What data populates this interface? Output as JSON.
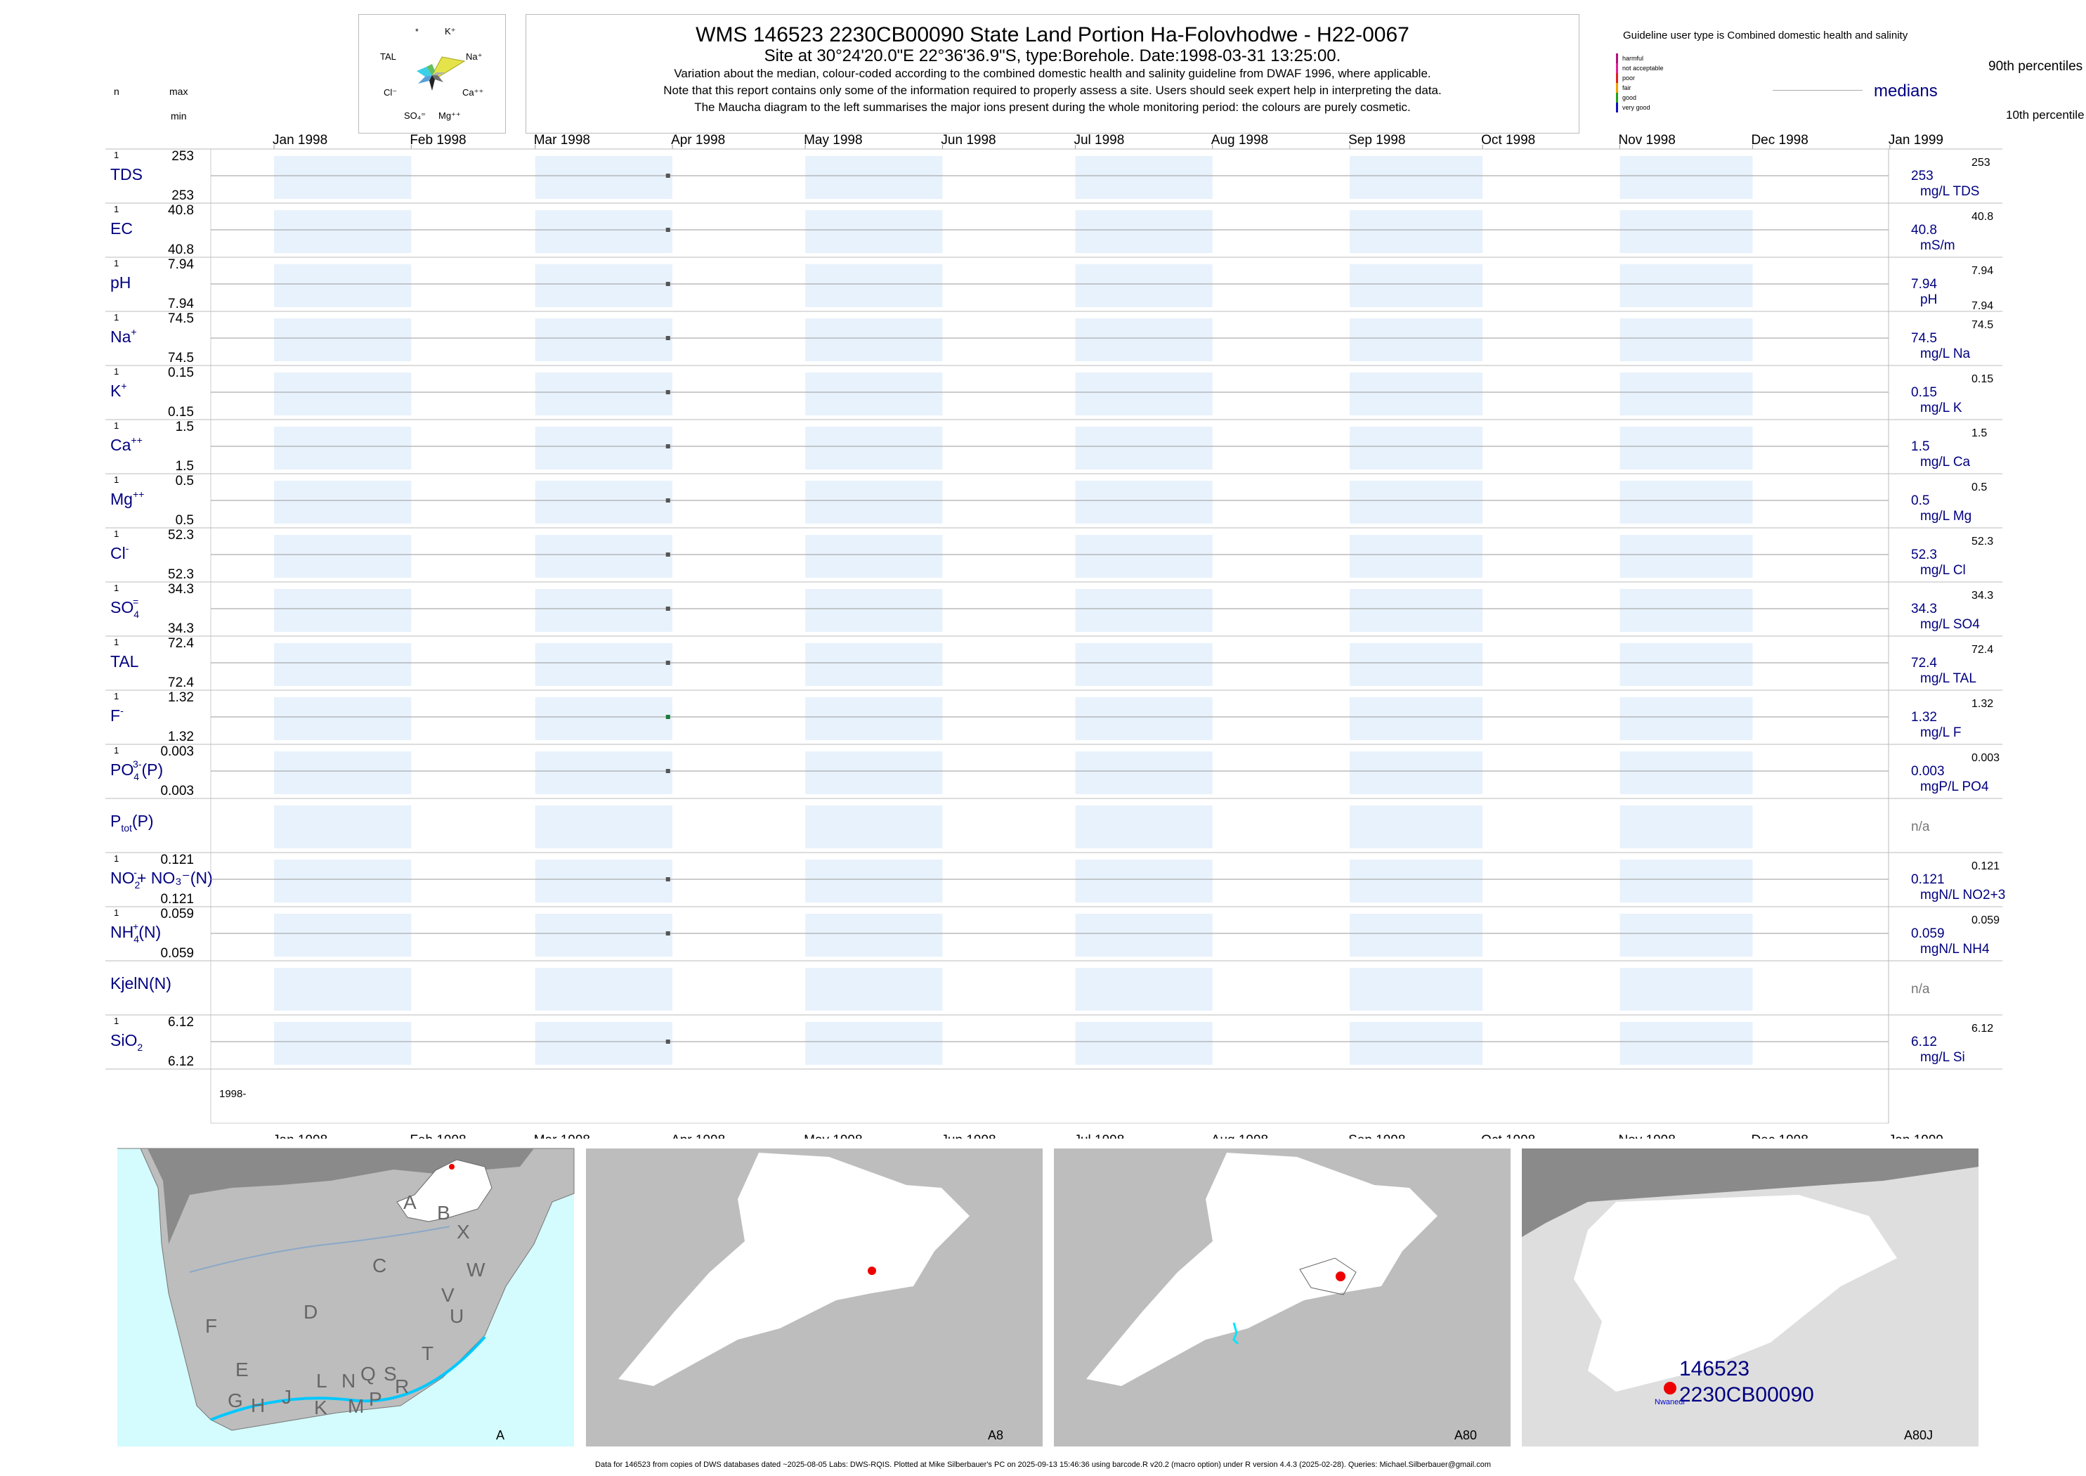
{
  "header": {
    "title": "WMS 146523 2230CB00090 State Land Portion Ha-Folovhodwe - H22-0067",
    "site": "Site at 30°24'20.0\"E 22°36'36.9\"S, type:Borehole. Date:1998-03-31 13:25:00.",
    "notes": [
      "Variation about the median,  colour-coded according to the combined domestic health and salinity guideline from DWAF 1996, where applicable.",
      "Note that this report contains only some of the information required to properly assess a site. Users should seek expert help in interpreting the data.",
      "The Maucha diagram to the left summarises the major ions present during the whole monitoring period: the colours are purely cosmetic."
    ]
  },
  "maucha": {
    "labels": {
      "star": "*",
      "k": "K⁺",
      "tal": "TAL",
      "na": "Na⁺",
      "cl": "Cl⁻",
      "ca": "Ca⁺⁺",
      "so4": "SO₄⁼",
      "mg": "Mg⁺⁺"
    }
  },
  "column_labels": {
    "n": "n",
    "max": "max",
    "min": "min"
  },
  "legend": {
    "guideline": "Guideline user type is Combined domestic health and salinity",
    "classes": [
      {
        "label": "harmful",
        "color": "#b0127a"
      },
      {
        "label": "not acceptable",
        "color": "#e0209a"
      },
      {
        "label": "poor",
        "color": "#e02020"
      },
      {
        "label": "fair",
        "color": "#f0a000"
      },
      {
        "label": "good",
        "color": "#20a020"
      },
      {
        "label": "very good",
        "color": "#1010c0"
      }
    ],
    "p90": "90th percentiles",
    "median": "medians",
    "p10": "10th percentile"
  },
  "chart_data": {
    "type": "scatter",
    "x_axis": {
      "range": [
        "1998-01-01",
        "1999-01-15"
      ],
      "ticks": [
        "Jan 1998",
        "Feb 1998",
        "Mar 1998",
        "Apr 1998",
        "May 1998",
        "Jun 1998",
        "Jul 1998",
        "Aug 1998",
        "Sep 1998",
        "Oct 1998",
        "Nov 1998",
        "Dec 1998",
        "Jan 1999"
      ]
    },
    "sample_date": "1998-03-31",
    "year_label": "1998-",
    "series": [
      {
        "name": "TDS",
        "n": "1",
        "max": "253",
        "min": "253",
        "value": 253,
        "median": "253",
        "unit": "mg/L TDS",
        "p90": "253",
        "p10": ""
      },
      {
        "name": "EC",
        "n": "1",
        "max": "40.8",
        "min": "40.8",
        "value": 40.8,
        "median": "40.8",
        "unit": "mS/m",
        "p90": "40.8",
        "p10": ""
      },
      {
        "name": "pH",
        "n": "1",
        "max": "7.94",
        "min": "7.94",
        "value": 7.94,
        "median": "7.94",
        "unit": "pH",
        "p90": "7.94",
        "p10": "7.94"
      },
      {
        "name": "Na",
        "n": "1",
        "max": "74.5",
        "min": "74.5",
        "value": 74.5,
        "median": "74.5",
        "unit": "mg/L Na",
        "p90": "74.5",
        "p10": ""
      },
      {
        "name": "K",
        "n": "1",
        "max": "0.15",
        "min": "0.15",
        "value": 0.15,
        "median": "0.15",
        "unit": "mg/L K",
        "p90": "0.15",
        "p10": ""
      },
      {
        "name": "Ca",
        "n": "1",
        "max": "1.5",
        "min": "1.5",
        "value": 1.5,
        "median": "1.5",
        "unit": "mg/L Ca",
        "p90": "1.5",
        "p10": ""
      },
      {
        "name": "Mg",
        "n": "1",
        "max": "0.5",
        "min": "0.5",
        "value": 0.5,
        "median": "0.5",
        "unit": "mg/L Mg",
        "p90": "0.5",
        "p10": ""
      },
      {
        "name": "Cl",
        "n": "1",
        "max": "52.3",
        "min": "52.3",
        "value": 52.3,
        "median": "52.3",
        "unit": "mg/L Cl",
        "p90": "52.3",
        "p10": ""
      },
      {
        "name": "SO4",
        "n": "1",
        "max": "34.3",
        "min": "34.3",
        "value": 34.3,
        "median": "34.3",
        "unit": "mg/L SO4",
        "p90": "34.3",
        "p10": ""
      },
      {
        "name": "TAL",
        "n": "1",
        "max": "72.4",
        "min": "72.4",
        "value": 72.4,
        "median": "72.4",
        "unit": "mg/L TAL",
        "p90": "72.4",
        "p10": ""
      },
      {
        "name": "F",
        "n": "1",
        "max": "1.32",
        "min": "1.32",
        "value": 1.32,
        "median": "1.32",
        "unit": "mg/L F",
        "p90": "1.32",
        "p10": "",
        "mark_color": "#1a7a3a"
      },
      {
        "name": "PO4(P)",
        "n": "1",
        "max": "0.003",
        "min": "0.003",
        "value": 0.003,
        "median": "0.003",
        "unit": "mgP/L PO4",
        "p90": "0.003",
        "p10": ""
      },
      {
        "name": "Ptot(P)",
        "n": "",
        "max": "",
        "min": "",
        "value": null,
        "median": "n/a",
        "unit": "",
        "p90": "",
        "p10": ""
      },
      {
        "name": "NO2+NO3(N)",
        "n": "1",
        "max": "0.121",
        "min": "0.121",
        "value": 0.121,
        "median": "0.121",
        "unit": "mgN/L NO2+3",
        "p90": "0.121",
        "p10": ""
      },
      {
        "name": "NH4(N)",
        "n": "1",
        "max": "0.059",
        "min": "0.059",
        "value": 0.059,
        "median": "0.059",
        "unit": "mgN/L NH4",
        "p90": "0.059",
        "p10": ""
      },
      {
        "name": "KjelN(N)",
        "n": "",
        "max": "",
        "min": "",
        "value": null,
        "median": "n/a",
        "unit": "",
        "p90": "",
        "p10": ""
      },
      {
        "name": "SiO2",
        "n": "1",
        "max": "6.12",
        "min": "6.12",
        "value": 6.12,
        "median": "6.12",
        "unit": "mg/L Si",
        "p90": "6.12",
        "p10": ""
      }
    ]
  },
  "row_labels": [
    {
      "main": "TDS",
      "sup": "",
      "sub": "",
      "tail": ""
    },
    {
      "main": "EC",
      "sup": "",
      "sub": "",
      "tail": ""
    },
    {
      "main": "pH",
      "sup": "",
      "sub": "",
      "tail": ""
    },
    {
      "main": "Na",
      "sup": "+",
      "sub": "",
      "tail": ""
    },
    {
      "main": "K",
      "sup": "+",
      "sub": "",
      "tail": ""
    },
    {
      "main": "Ca",
      "sup": "++",
      "sub": "",
      "tail": ""
    },
    {
      "main": "Mg",
      "sup": "++",
      "sub": "",
      "tail": ""
    },
    {
      "main": "Cl",
      "sup": "-",
      "sub": "",
      "tail": ""
    },
    {
      "main": "SO",
      "sup": "=",
      "sub": "4",
      "tail": ""
    },
    {
      "main": "TAL",
      "sup": "",
      "sub": "",
      "tail": ""
    },
    {
      "main": "F",
      "sup": "-",
      "sub": "",
      "tail": ""
    },
    {
      "main": "PO",
      "sup": "3-",
      "sub": "4",
      "tail": "(P)"
    },
    {
      "main": "P",
      "sup": "",
      "sub": "tot",
      "tail": "(P)"
    },
    {
      "main": "NO",
      "sup": "-",
      "sub": "2",
      "tail": "+ NO₃⁻(N)"
    },
    {
      "main": "NH",
      "sup": "+",
      "sub": "4",
      "tail": "(N)"
    },
    {
      "main": "KjelN(N)",
      "sup": "",
      "sub": "",
      "tail": ""
    },
    {
      "main": "SiO",
      "sup": "",
      "sub": "2",
      "tail": ""
    }
  ],
  "maps": [
    {
      "label": "A",
      "regions": [
        "A",
        "B",
        "X",
        "C",
        "W",
        "D",
        "V",
        "U",
        "F",
        "T",
        "E",
        "J",
        "L",
        "N",
        "Q",
        "S",
        "R",
        "G",
        "H",
        "K",
        "M",
        "P"
      ]
    },
    {
      "label": "A8"
    },
    {
      "label": "A80"
    },
    {
      "label": "A80J",
      "site_id": "146523",
      "site_code": "2230CB00090",
      "place": "Nwanedi"
    }
  ],
  "colors": {
    "shade": "#e8f2fc",
    "label_blue": "#000080",
    "site_red": "#ee0000",
    "ocean": "#d4fbfd",
    "land": "#bdbdbd",
    "dark": "#8a8a8a",
    "water": "#00e5ff"
  },
  "footer": "Data for 146523 from copies of DWS databases dated ~2025-08-05 Labs: DWS-RQIS. Plotted at Mike Silberbauer's PC on 2025-09-13 15:46:36 using barcode.R v20.2 (macro option) under R version 4.4.3 (2025-02-28). Queries: Michael.Silberbauer@gmail.com"
}
